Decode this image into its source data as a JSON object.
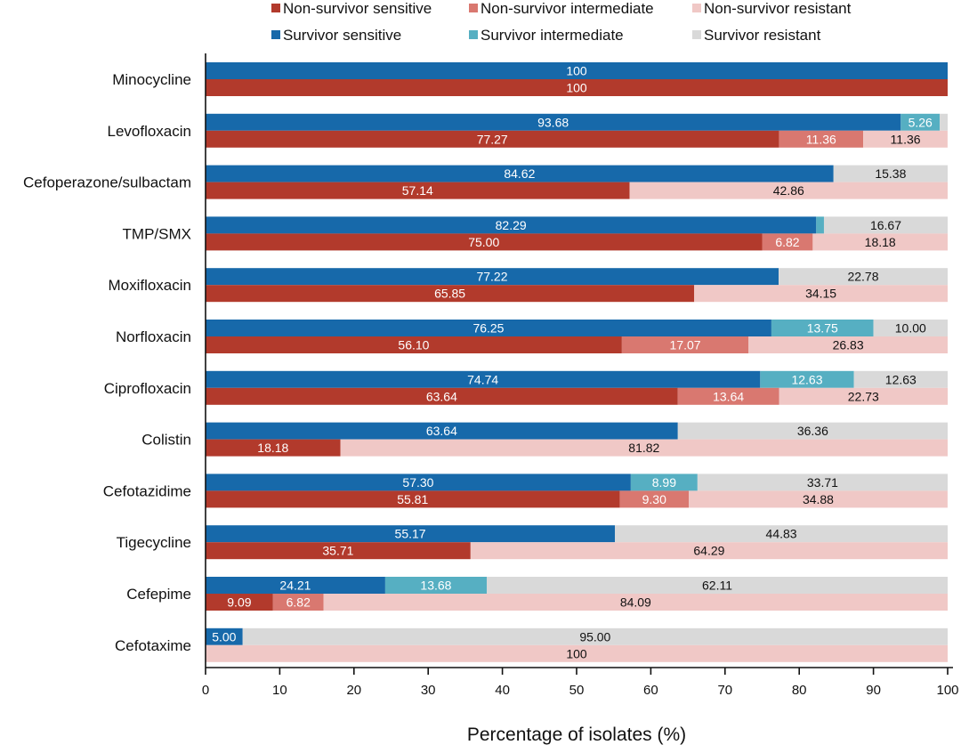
{
  "chart_data": {
    "type": "bar",
    "orientation": "horizontal",
    "stacked": true,
    "title": "",
    "xlabel": "Percentage of isolates (%)",
    "ylabel": "",
    "xlim": [
      0,
      100
    ],
    "xticks": [
      0,
      10,
      20,
      30,
      40,
      50,
      60,
      70,
      80,
      90,
      100
    ],
    "grid": false,
    "legend_position": "top",
    "groups": [
      "Survivor",
      "Non-survivor"
    ],
    "legend": [
      {
        "key": "ns_sensitive",
        "label": "Non-survivor sensitive",
        "color": "#b23a2c"
      },
      {
        "key": "ns_intermediate",
        "label": "Non-survivor intermediate",
        "color": "#d97870"
      },
      {
        "key": "ns_resistant",
        "label": "Non-survivor resistant",
        "color": "#f0c8c6"
      },
      {
        "key": "s_sensitive",
        "label": "Survivor sensitive",
        "color": "#1769aa"
      },
      {
        "key": "s_intermediate",
        "label": "Survivor intermediate",
        "color": "#56afc2"
      },
      {
        "key": "s_resistant",
        "label": "Survivor resistant",
        "color": "#d9d9d9"
      }
    ],
    "categories": [
      "Minocycline",
      "Levofloxacin",
      "Cefoperazone/sulbactam",
      "TMP/SMX",
      "Moxifloxacin",
      "Norfloxacin",
      "Ciprofloxacin",
      "Colistin",
      "Cefotazidime",
      "Tigecycline",
      "Cefepime",
      "Cefotaxime"
    ],
    "series": [
      {
        "name": "Survivor sensitive",
        "key": "s_sensitive",
        "bar": "survivor",
        "values": [
          100,
          93.68,
          84.62,
          82.29,
          77.22,
          76.25,
          74.74,
          63.64,
          57.3,
          55.17,
          24.21,
          5.0
        ],
        "labels": [
          "100",
          "93.68",
          "84.62",
          "82.29",
          "77.22",
          "76.25",
          "74.74",
          "63.64",
          "57.30",
          "55.17",
          "24.21",
          "5.00"
        ]
      },
      {
        "name": "Survivor intermediate",
        "key": "s_intermediate",
        "bar": "survivor",
        "values": [
          0,
          5.26,
          0,
          1.04,
          0,
          13.75,
          12.63,
          0,
          8.99,
          0,
          13.68,
          0
        ],
        "labels": [
          "",
          "5.26",
          "",
          "",
          "",
          "13.75",
          "12.63",
          "",
          "8.99",
          "",
          "13.68",
          ""
        ]
      },
      {
        "name": "Survivor resistant",
        "key": "s_resistant",
        "bar": "survivor",
        "values": [
          0,
          1.06,
          15.38,
          16.67,
          22.78,
          10.0,
          12.63,
          36.36,
          33.71,
          44.83,
          62.11,
          95.0
        ],
        "labels": [
          "",
          "",
          "15.38",
          "16.67",
          "22.78",
          "10.00",
          "12.63",
          "36.36",
          "33.71",
          "44.83",
          "62.11",
          "95.00"
        ]
      },
      {
        "name": "Non-survivor sensitive",
        "key": "ns_sensitive",
        "bar": "non-survivor",
        "values": [
          100,
          77.27,
          57.14,
          75.0,
          65.85,
          56.1,
          63.64,
          18.18,
          55.81,
          35.71,
          9.09,
          0
        ],
        "labels": [
          "100",
          "77.27",
          "57.14",
          "75.00",
          "65.85",
          "56.10",
          "63.64",
          "18.18",
          "55.81",
          "35.71",
          "9.09",
          ""
        ]
      },
      {
        "name": "Non-survivor intermediate",
        "key": "ns_intermediate",
        "bar": "non-survivor",
        "values": [
          0,
          11.36,
          0,
          6.82,
          0,
          17.07,
          13.64,
          0,
          9.3,
          0,
          6.82,
          0
        ],
        "labels": [
          "",
          "11.36",
          "",
          "6.82",
          "",
          "17.07",
          "13.64",
          "",
          "9.30",
          "",
          "6.82",
          ""
        ]
      },
      {
        "name": "Non-survivor resistant",
        "key": "ns_resistant",
        "bar": "non-survivor",
        "values": [
          0,
          11.36,
          42.86,
          18.18,
          34.15,
          26.83,
          22.73,
          81.82,
          34.88,
          64.29,
          84.09,
          100
        ],
        "labels": [
          "",
          "11.36",
          "42.86",
          "18.18",
          "34.15",
          "26.83",
          "22.73",
          "81.82",
          "34.88",
          "64.29",
          "84.09",
          "100"
        ]
      }
    ]
  }
}
